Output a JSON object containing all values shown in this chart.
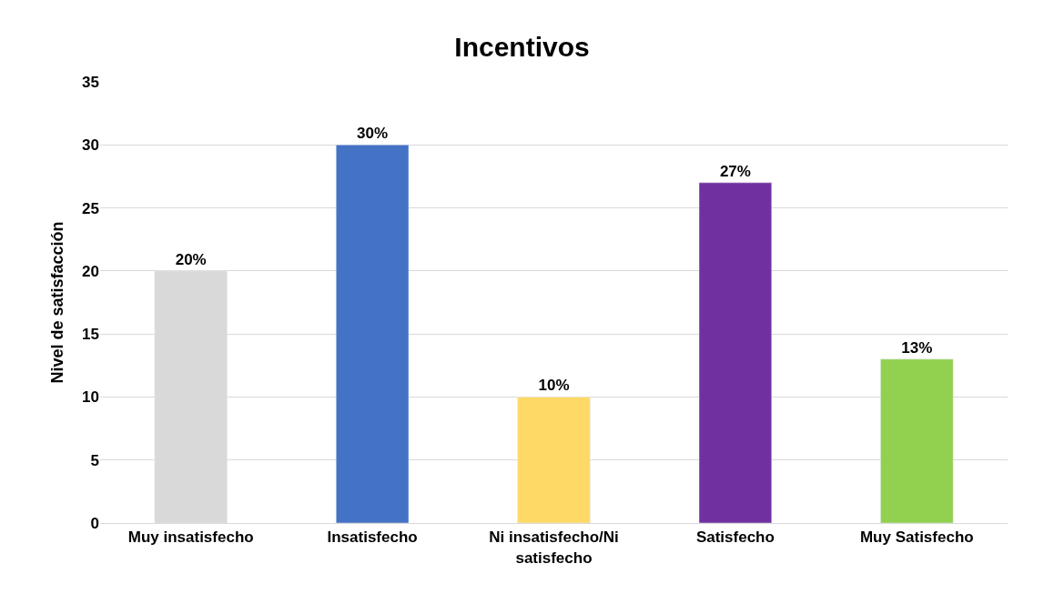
{
  "chart_data": {
    "type": "bar",
    "title": "Incentivos",
    "ylabel": "Nivel de satisfacción",
    "categories": [
      "Muy insatisfecho",
      "Insatisfecho",
      "Ni insatisfecho/Ni satisfecho",
      "Satisfecho",
      "Muy Satisfecho"
    ],
    "values": [
      20,
      30,
      10,
      27,
      13
    ],
    "value_labels": [
      "20%",
      "30%",
      "10%",
      "27%",
      "13%"
    ],
    "colors": [
      "#d9d9d9",
      "#4472c4",
      "#ffd966",
      "#7030a0",
      "#92d050"
    ],
    "ylim": [
      0,
      35
    ],
    "yticks": [
      0,
      5,
      10,
      15,
      20,
      25,
      30,
      35
    ],
    "grid": "y"
  }
}
